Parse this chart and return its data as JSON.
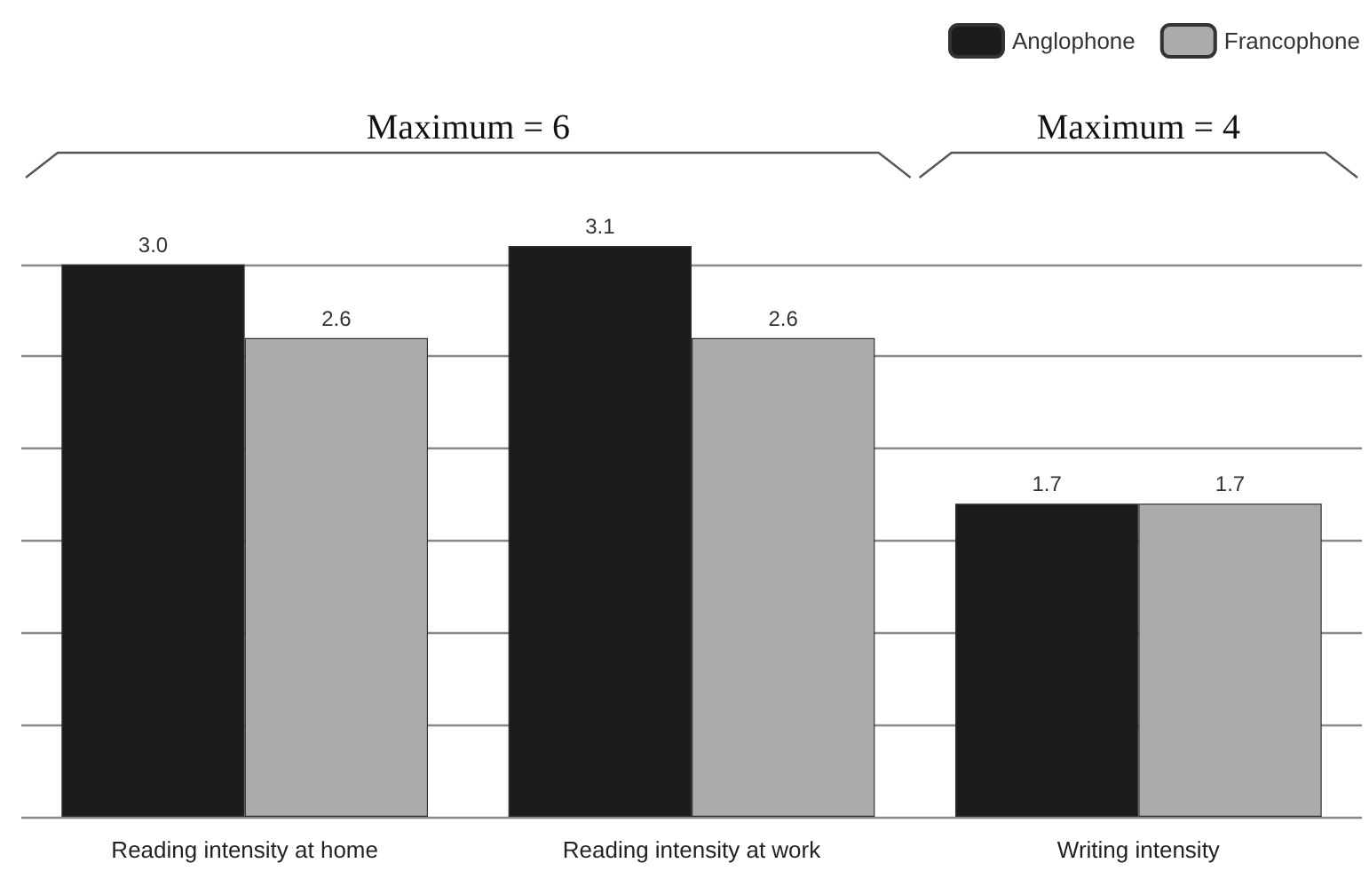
{
  "chart_data": {
    "type": "bar",
    "categories": [
      "Reading intensity at home",
      "Reading intensity at work",
      "Writing intensity"
    ],
    "series": [
      {
        "name": "Anglophone",
        "color": "#1c1c1c",
        "values": [
          3.0,
          3.1,
          1.7
        ],
        "value_labels": [
          "3.0",
          "3.1",
          "1.7"
        ]
      },
      {
        "name": "Francophone",
        "color": "#ababab",
        "values": [
          2.6,
          2.6,
          1.7
        ],
        "value_labels": [
          "2.6",
          "2.6",
          "1.7"
        ]
      }
    ],
    "yticks": [
      {
        "value": 0,
        "label": null
      },
      {
        "value": 0.5,
        "label": null
      },
      {
        "value": 1,
        "label": null
      },
      {
        "value": 1.5,
        "label": null
      },
      {
        "value": 2,
        "label": null
      },
      {
        "value": 2.5,
        "label": null
      },
      {
        "value": 3,
        "label": null
      }
    ],
    "tick_labels": "x",
    "grid": "y",
    "legend": "top right",
    "annotations": [
      "Maximum = 6",
      "Maximum = 4"
    ]
  }
}
